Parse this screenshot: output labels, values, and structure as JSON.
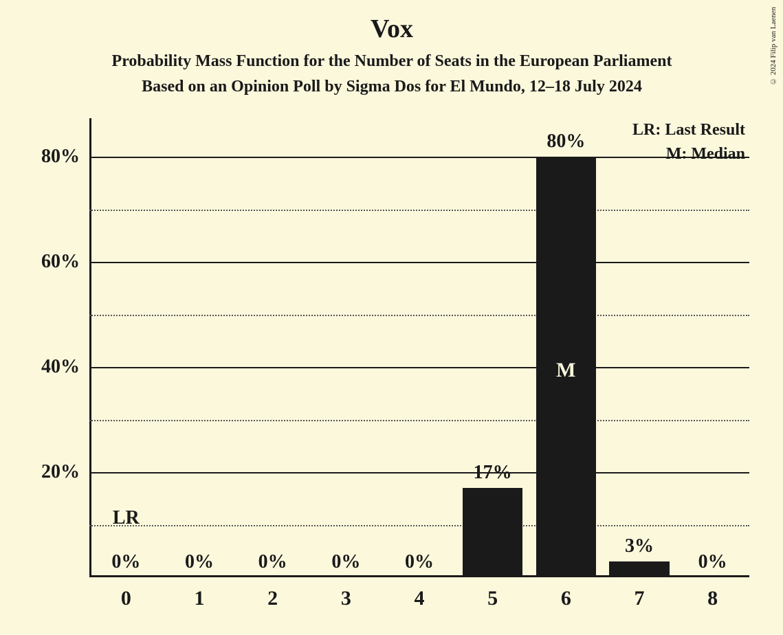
{
  "copyright": "© 2024 Filip van Laenen",
  "title": "Vox",
  "subtitle1": "Probability Mass Function for the Number of Seats in the European Parliament",
  "subtitle2": "Based on an Opinion Poll by Sigma Dos for El Mundo, 12–18 July 2024",
  "legend": {
    "lr": "LR: Last Result",
    "m": "M: Median"
  },
  "chart": {
    "type": "bar",
    "background_color": "#fbf8dc",
    "bar_color": "#1a1a1a",
    "text_color": "#1a1a1a",
    "grid_solid_color": "#1a1a1a",
    "grid_dotted_color": "#555555",
    "median_text_color": "#fbf8dc",
    "ylim_max": 85,
    "y_major_ticks": [
      20,
      40,
      60,
      80
    ],
    "y_minor_ticks": [
      10,
      30,
      50,
      70
    ],
    "bar_width_ratio": 0.82,
    "categories": [
      "0",
      "1",
      "2",
      "3",
      "4",
      "5",
      "6",
      "7",
      "8"
    ],
    "values": [
      0,
      0,
      0,
      0,
      0,
      17,
      80,
      3,
      0
    ],
    "value_labels": [
      "0%",
      "0%",
      "0%",
      "0%",
      "0%",
      "17%",
      "80%",
      "3%",
      "0%"
    ],
    "lr_index": 0,
    "lr_label": "LR",
    "median_index": 6,
    "median_label": "M",
    "y_tick_labels": {
      "20": "20%",
      "40": "40%",
      "60": "60%",
      "80": "80%"
    }
  }
}
